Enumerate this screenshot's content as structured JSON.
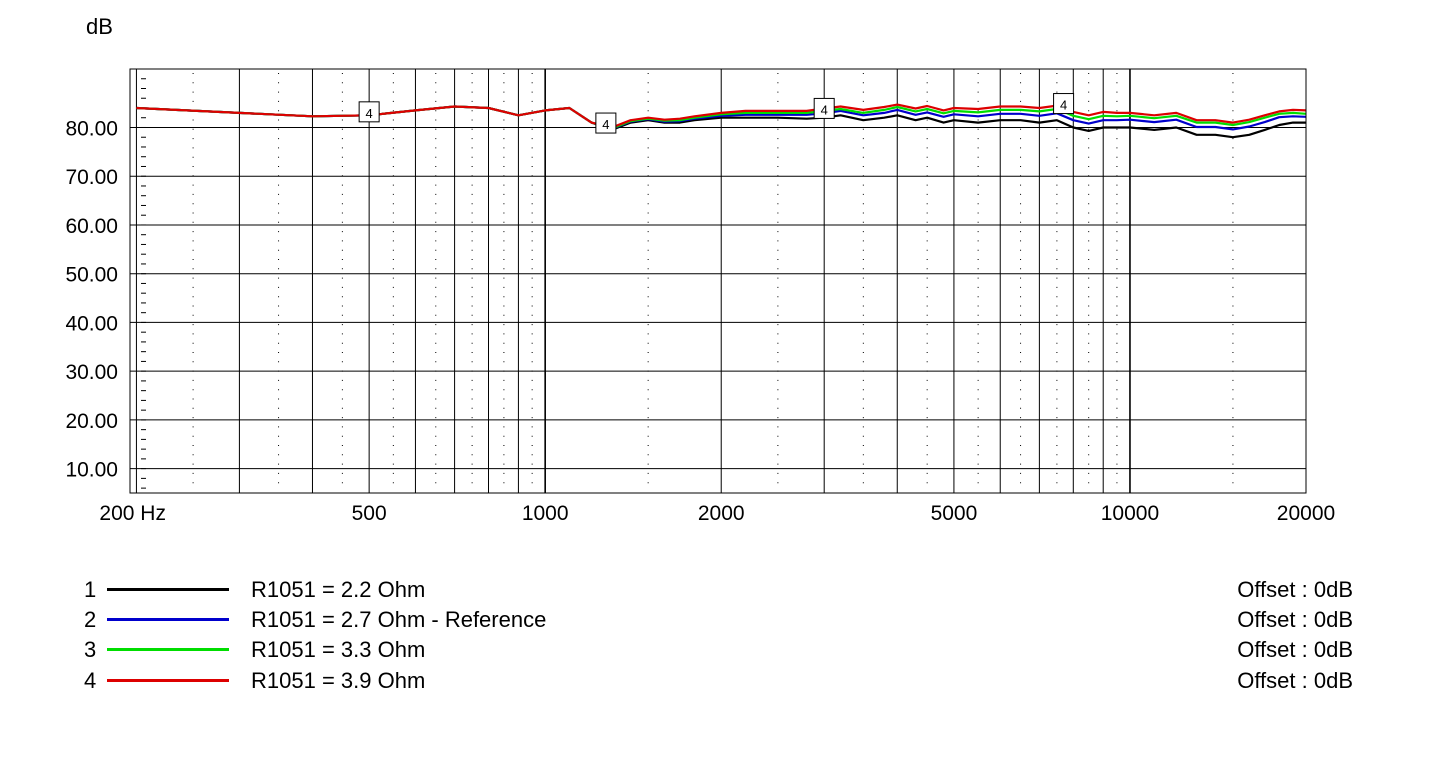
{
  "chart_data": {
    "type": "line",
    "ylabel": "dB",
    "xlabel": "",
    "xscale": "log",
    "xlim": [
      195,
      20000
    ],
    "ylim": [
      5,
      92
    ],
    "grid": true,
    "y_ticks": [
      {
        "value": 80,
        "label": "80.00"
      },
      {
        "value": 70,
        "label": "70.00"
      },
      {
        "value": 60,
        "label": "60.00"
      },
      {
        "value": 50,
        "label": "50.00"
      },
      {
        "value": 40,
        "label": "40.00"
      },
      {
        "value": 30,
        "label": "30.00"
      },
      {
        "value": 20,
        "label": "20.00"
      },
      {
        "value": 10,
        "label": "10.00"
      }
    ],
    "x_ticks": [
      {
        "value": 200,
        "label": "200 Hz"
      },
      {
        "value": 500,
        "label": "500"
      },
      {
        "value": 1000,
        "label": "1000"
      },
      {
        "value": 2000,
        "label": "2000"
      },
      {
        "value": 5000,
        "label": "5000"
      },
      {
        "value": 10000,
        "label": "10000"
      },
      {
        "value": 20000,
        "label": "20000"
      }
    ],
    "series": [
      {
        "name": "R1051 = 2.2 Ohm",
        "color": "#000000",
        "x": [
          200,
          300,
          400,
          500,
          600,
          700,
          800,
          900,
          1000,
          1100,
          1200,
          1300,
          1400,
          1500,
          1600,
          1700,
          1800,
          2000,
          2200,
          2500,
          2800,
          3000,
          3200,
          3500,
          3800,
          4000,
          4300,
          4500,
          4800,
          5000,
          5500,
          6000,
          6500,
          7000,
          7500,
          8000,
          8500,
          9000,
          9500,
          10000,
          11000,
          12000,
          13000,
          14000,
          15000,
          16000,
          17000,
          18000,
          19000,
          20000
        ],
        "y": [
          84,
          83,
          82.3,
          82.5,
          83.5,
          84.3,
          84,
          82.5,
          83.5,
          84,
          81,
          79.5,
          81,
          81.5,
          81,
          81,
          81.5,
          82,
          82,
          82,
          81.8,
          82,
          82.5,
          81.5,
          82,
          82.5,
          81.5,
          82,
          81,
          81.5,
          81,
          81.5,
          81.5,
          81,
          81.5,
          80,
          79.3,
          80,
          80,
          80,
          79.5,
          80,
          78.5,
          78.5,
          78,
          78.5,
          79.5,
          80.5,
          81,
          81
        ]
      },
      {
        "name": "R1051 = 2.7 Ohm - Reference",
        "color": "#0000cc",
        "x": [
          200,
          300,
          400,
          500,
          600,
          700,
          800,
          900,
          1000,
          1100,
          1200,
          1300,
          1400,
          1500,
          1600,
          1700,
          1800,
          2000,
          2200,
          2500,
          2800,
          3000,
          3200,
          3500,
          3800,
          4000,
          4300,
          4500,
          4800,
          5000,
          5500,
          6000,
          6500,
          7000,
          7500,
          8000,
          8500,
          9000,
          9500,
          10000,
          11000,
          12000,
          13000,
          14000,
          15000,
          16000,
          17000,
          18000,
          19000,
          20000
        ],
        "y": [
          84,
          83,
          82.3,
          82.5,
          83.5,
          84.3,
          84,
          82.5,
          83.5,
          84,
          81,
          79.7,
          81.2,
          81.7,
          81.2,
          81.3,
          81.8,
          82.4,
          82.6,
          82.6,
          82.6,
          82.9,
          83.4,
          82.5,
          83,
          83.6,
          82.6,
          83.1,
          82.2,
          82.7,
          82.3,
          82.8,
          82.8,
          82.4,
          82.9,
          81.5,
          80.8,
          81.5,
          81.5,
          81.6,
          81.1,
          81.6,
          80.1,
          80.1,
          79.6,
          80.2,
          81.1,
          82.1,
          82.3,
          82.2
        ]
      },
      {
        "name": "R1051 = 3.3 Ohm",
        "color": "#00dd00",
        "x": [
          200,
          300,
          400,
          500,
          600,
          700,
          800,
          900,
          1000,
          1100,
          1200,
          1300,
          1400,
          1500,
          1600,
          1700,
          1800,
          2000,
          2200,
          2500,
          2800,
          3000,
          3200,
          3500,
          3800,
          4000,
          4300,
          4500,
          4800,
          5000,
          5500,
          6000,
          6500,
          7000,
          7500,
          8000,
          8500,
          9000,
          9500,
          10000,
          11000,
          12000,
          13000,
          14000,
          15000,
          16000,
          17000,
          18000,
          19000,
          20000
        ],
        "y": [
          84,
          83,
          82.3,
          82.5,
          83.5,
          84.3,
          84,
          82.5,
          83.5,
          84,
          81,
          79.8,
          81.3,
          81.8,
          81.4,
          81.5,
          82,
          82.7,
          83,
          83,
          83,
          83.4,
          83.8,
          83,
          83.6,
          84.2,
          83.3,
          83.8,
          82.9,
          83.4,
          83.1,
          83.6,
          83.6,
          83.3,
          83.8,
          82.4,
          81.7,
          82.4,
          82.3,
          82.4,
          81.9,
          82.4,
          81,
          81,
          80.5,
          81.1,
          82,
          82.8,
          83,
          82.8
        ]
      },
      {
        "name": "R1051 = 3.9 Ohm",
        "color": "#dd0000",
        "x": [
          200,
          300,
          400,
          500,
          600,
          700,
          800,
          900,
          1000,
          1100,
          1200,
          1300,
          1400,
          1500,
          1600,
          1700,
          1800,
          2000,
          2200,
          2500,
          2800,
          3000,
          3200,
          3500,
          3800,
          4000,
          4300,
          4500,
          4800,
          5000,
          5500,
          6000,
          6500,
          7000,
          7500,
          8000,
          8500,
          9000,
          9500,
          10000,
          11000,
          12000,
          13000,
          14000,
          15000,
          16000,
          17000,
          18000,
          19000,
          20000
        ],
        "y": [
          84,
          83,
          82.3,
          82.5,
          83.5,
          84.3,
          84,
          82.5,
          83.5,
          84,
          81,
          80,
          81.5,
          82,
          81.6,
          81.8,
          82.3,
          83,
          83.4,
          83.4,
          83.4,
          83.9,
          84.3,
          83.6,
          84.2,
          84.7,
          83.9,
          84.4,
          83.5,
          84,
          83.8,
          84.3,
          84.3,
          84,
          84.5,
          83.2,
          82.5,
          83.2,
          83,
          83,
          82.5,
          83,
          81.5,
          81.5,
          81,
          81.6,
          82.5,
          83.3,
          83.6,
          83.5
        ]
      }
    ],
    "markers": [
      {
        "label": "4",
        "x": 500,
        "y": 82.8
      },
      {
        "label": "4",
        "x": 1270,
        "y": 80.5
      },
      {
        "label": "4",
        "x": 3000,
        "y": 83.5
      },
      {
        "label": "4",
        "x": 7700,
        "y": 84.5
      }
    ]
  },
  "legend": [
    {
      "number": "1",
      "label": "R1051 = 2.2 Ohm",
      "offset": "Offset : 0dB",
      "color": "#000000"
    },
    {
      "number": "2",
      "label": "R1051 = 2.7 Ohm - Reference",
      "offset": "Offset : 0dB",
      "color": "#0000cc"
    },
    {
      "number": "3",
      "label": "R1051 = 3.3 Ohm",
      "offset": "Offset : 0dB",
      "color": "#00dd00"
    },
    {
      "number": "4",
      "label": "R1051 = 3.9 Ohm",
      "offset": "Offset : 0dB",
      "color": "#dd0000"
    }
  ]
}
